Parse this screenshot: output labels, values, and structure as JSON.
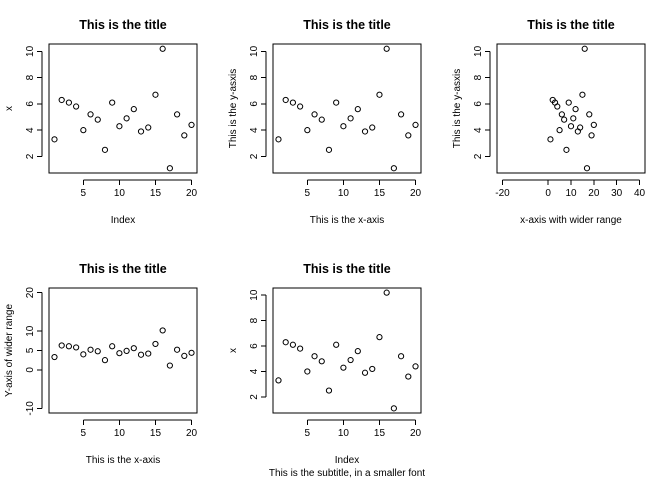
{
  "chart_data": [
    {
      "type": "scatter",
      "title": "This is the title",
      "xlabel": "Index",
      "ylabel": "x",
      "subtitle": "",
      "xlim": [
        1,
        20
      ],
      "ylim": [
        1.1,
        10.2
      ],
      "xticks": [
        5,
        10,
        15,
        20
      ],
      "yticks": [
        2,
        4,
        6,
        8,
        10
      ],
      "series": [
        {
          "x": [
            1,
            2,
            3,
            4,
            5,
            6,
            7,
            8,
            9,
            10,
            11,
            12,
            13,
            14,
            15,
            16,
            17,
            18,
            19,
            20
          ],
          "values": [
            3.3,
            6.3,
            6.1,
            5.8,
            4.0,
            5.2,
            4.8,
            2.5,
            6.1,
            4.3,
            4.9,
            5.6,
            3.9,
            4.2,
            6.7,
            10.2,
            1.1,
            5.2,
            3.6,
            4.4
          ]
        }
      ]
    },
    {
      "type": "scatter",
      "title": "This is the title",
      "xlabel": "This is the x-axis",
      "ylabel": "This is the y-asxis",
      "subtitle": "",
      "xlim": [
        1,
        20
      ],
      "ylim": [
        1.1,
        10.2
      ],
      "xticks": [
        5,
        10,
        15,
        20
      ],
      "yticks": [
        2,
        4,
        6,
        8,
        10
      ],
      "series": [
        {
          "x": [
            1,
            2,
            3,
            4,
            5,
            6,
            7,
            8,
            9,
            10,
            11,
            12,
            13,
            14,
            15,
            16,
            17,
            18,
            19,
            20
          ],
          "values": [
            3.3,
            6.3,
            6.1,
            5.8,
            4.0,
            5.2,
            4.8,
            2.5,
            6.1,
            4.3,
            4.9,
            5.6,
            3.9,
            4.2,
            6.7,
            10.2,
            1.1,
            5.2,
            3.6,
            4.4
          ]
        }
      ]
    },
    {
      "type": "scatter",
      "title": "This is the title",
      "xlabel": "x-axis with wider range",
      "ylabel": "This is the y-asxis",
      "subtitle": "",
      "xlim": [
        -20,
        40
      ],
      "ylim": [
        1.1,
        10.2
      ],
      "xticks": [
        -20,
        0,
        10,
        20,
        30,
        40
      ],
      "yticks": [
        2,
        4,
        6,
        8,
        10
      ],
      "series": [
        {
          "x": [
            1,
            2,
            3,
            4,
            5,
            6,
            7,
            8,
            9,
            10,
            11,
            12,
            13,
            14,
            15,
            16,
            17,
            18,
            19,
            20
          ],
          "values": [
            3.3,
            6.3,
            6.1,
            5.8,
            4.0,
            5.2,
            4.8,
            2.5,
            6.1,
            4.3,
            4.9,
            5.6,
            3.9,
            4.2,
            6.7,
            10.2,
            1.1,
            5.2,
            3.6,
            4.4
          ]
        }
      ]
    },
    {
      "type": "scatter",
      "title": "This is the title",
      "xlabel": "This is the x-axis",
      "ylabel": "Y-axis of wider range",
      "subtitle": "",
      "xlim": [
        1,
        20
      ],
      "ylim": [
        -10,
        20
      ],
      "xticks": [
        5,
        10,
        15,
        20
      ],
      "yticks": [
        -10,
        0,
        5,
        10,
        20
      ],
      "series": [
        {
          "x": [
            1,
            2,
            3,
            4,
            5,
            6,
            7,
            8,
            9,
            10,
            11,
            12,
            13,
            14,
            15,
            16,
            17,
            18,
            19,
            20
          ],
          "values": [
            3.3,
            6.3,
            6.1,
            5.8,
            4.0,
            5.2,
            4.8,
            2.5,
            6.1,
            4.3,
            4.9,
            5.6,
            3.9,
            4.2,
            6.7,
            10.2,
            1.1,
            5.2,
            3.6,
            4.4
          ]
        }
      ]
    },
    {
      "type": "scatter",
      "title": "This is the title",
      "xlabel": "Index",
      "ylabel": "x",
      "subtitle": "This is the subtitle, in a smaller font",
      "xlim": [
        1,
        20
      ],
      "ylim": [
        1.1,
        10.2
      ],
      "xticks": [
        5,
        10,
        15,
        20
      ],
      "yticks": [
        2,
        4,
        6,
        8,
        10
      ],
      "series": [
        {
          "x": [
            1,
            2,
            3,
            4,
            5,
            6,
            7,
            8,
            9,
            10,
            11,
            12,
            13,
            14,
            15,
            16,
            17,
            18,
            19,
            20
          ],
          "values": [
            3.3,
            6.3,
            6.1,
            5.8,
            4.0,
            5.2,
            4.8,
            2.5,
            6.1,
            4.3,
            4.9,
            5.6,
            3.9,
            4.2,
            6.7,
            10.2,
            1.1,
            5.2,
            3.6,
            4.4
          ]
        }
      ]
    }
  ]
}
